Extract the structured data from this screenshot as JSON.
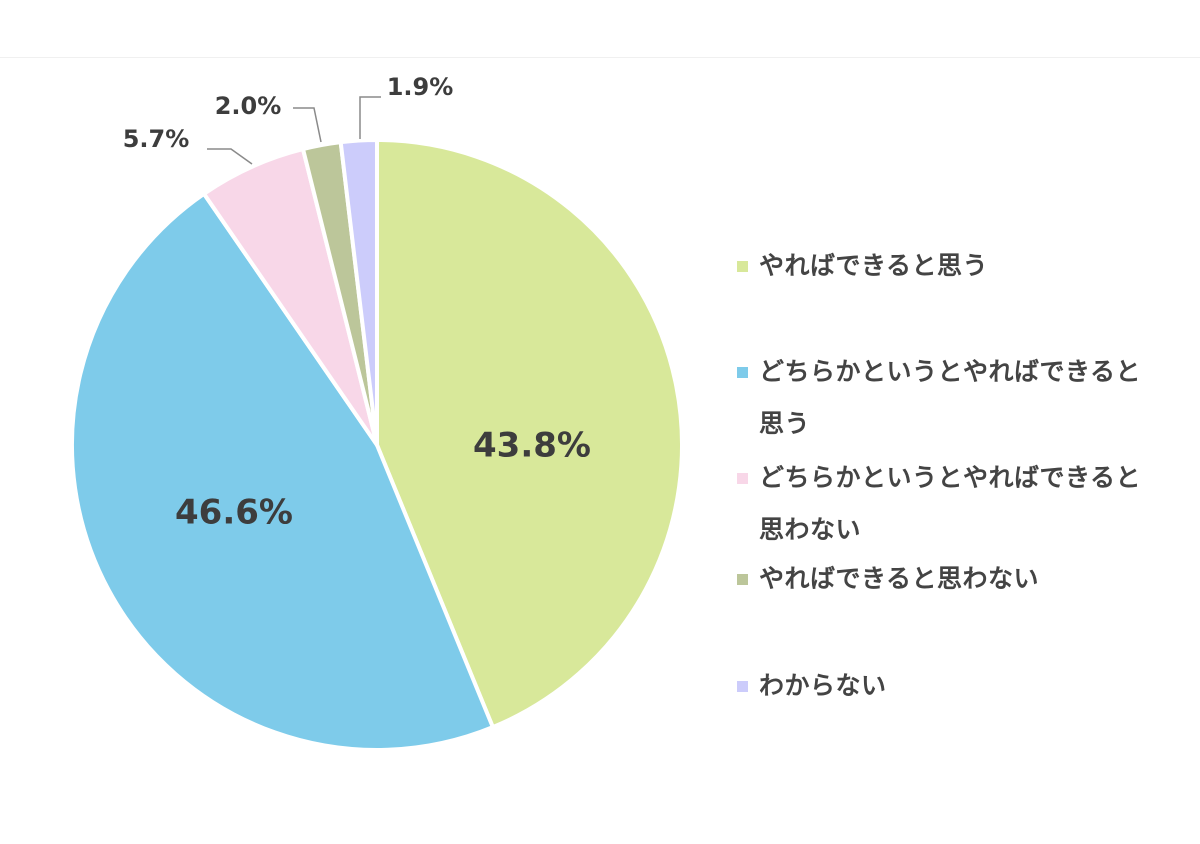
{
  "chart_data": {
    "type": "pie",
    "title": "",
    "slices": [
      {
        "label": "やればできると思う",
        "value": 43.8,
        "display": "43.8%",
        "color": "#d8e89a"
      },
      {
        "label": "どちらかというとやればできると思う",
        "value": 46.6,
        "display": "46.6%",
        "color": "#7ecbea"
      },
      {
        "label": "どちらかというとやればできると思わない",
        "value": 5.7,
        "display": "5.7%",
        "color": "#f8d7e8"
      },
      {
        "label": "やればできると思わない",
        "value": 2.0,
        "display": "2.0%",
        "color": "#bcc69a"
      },
      {
        "label": "わからない",
        "value": 1.9,
        "display": "1.9%",
        "color": "#ccccfb"
      }
    ],
    "direction": "clockwise-from-top",
    "legend_position": "right"
  }
}
